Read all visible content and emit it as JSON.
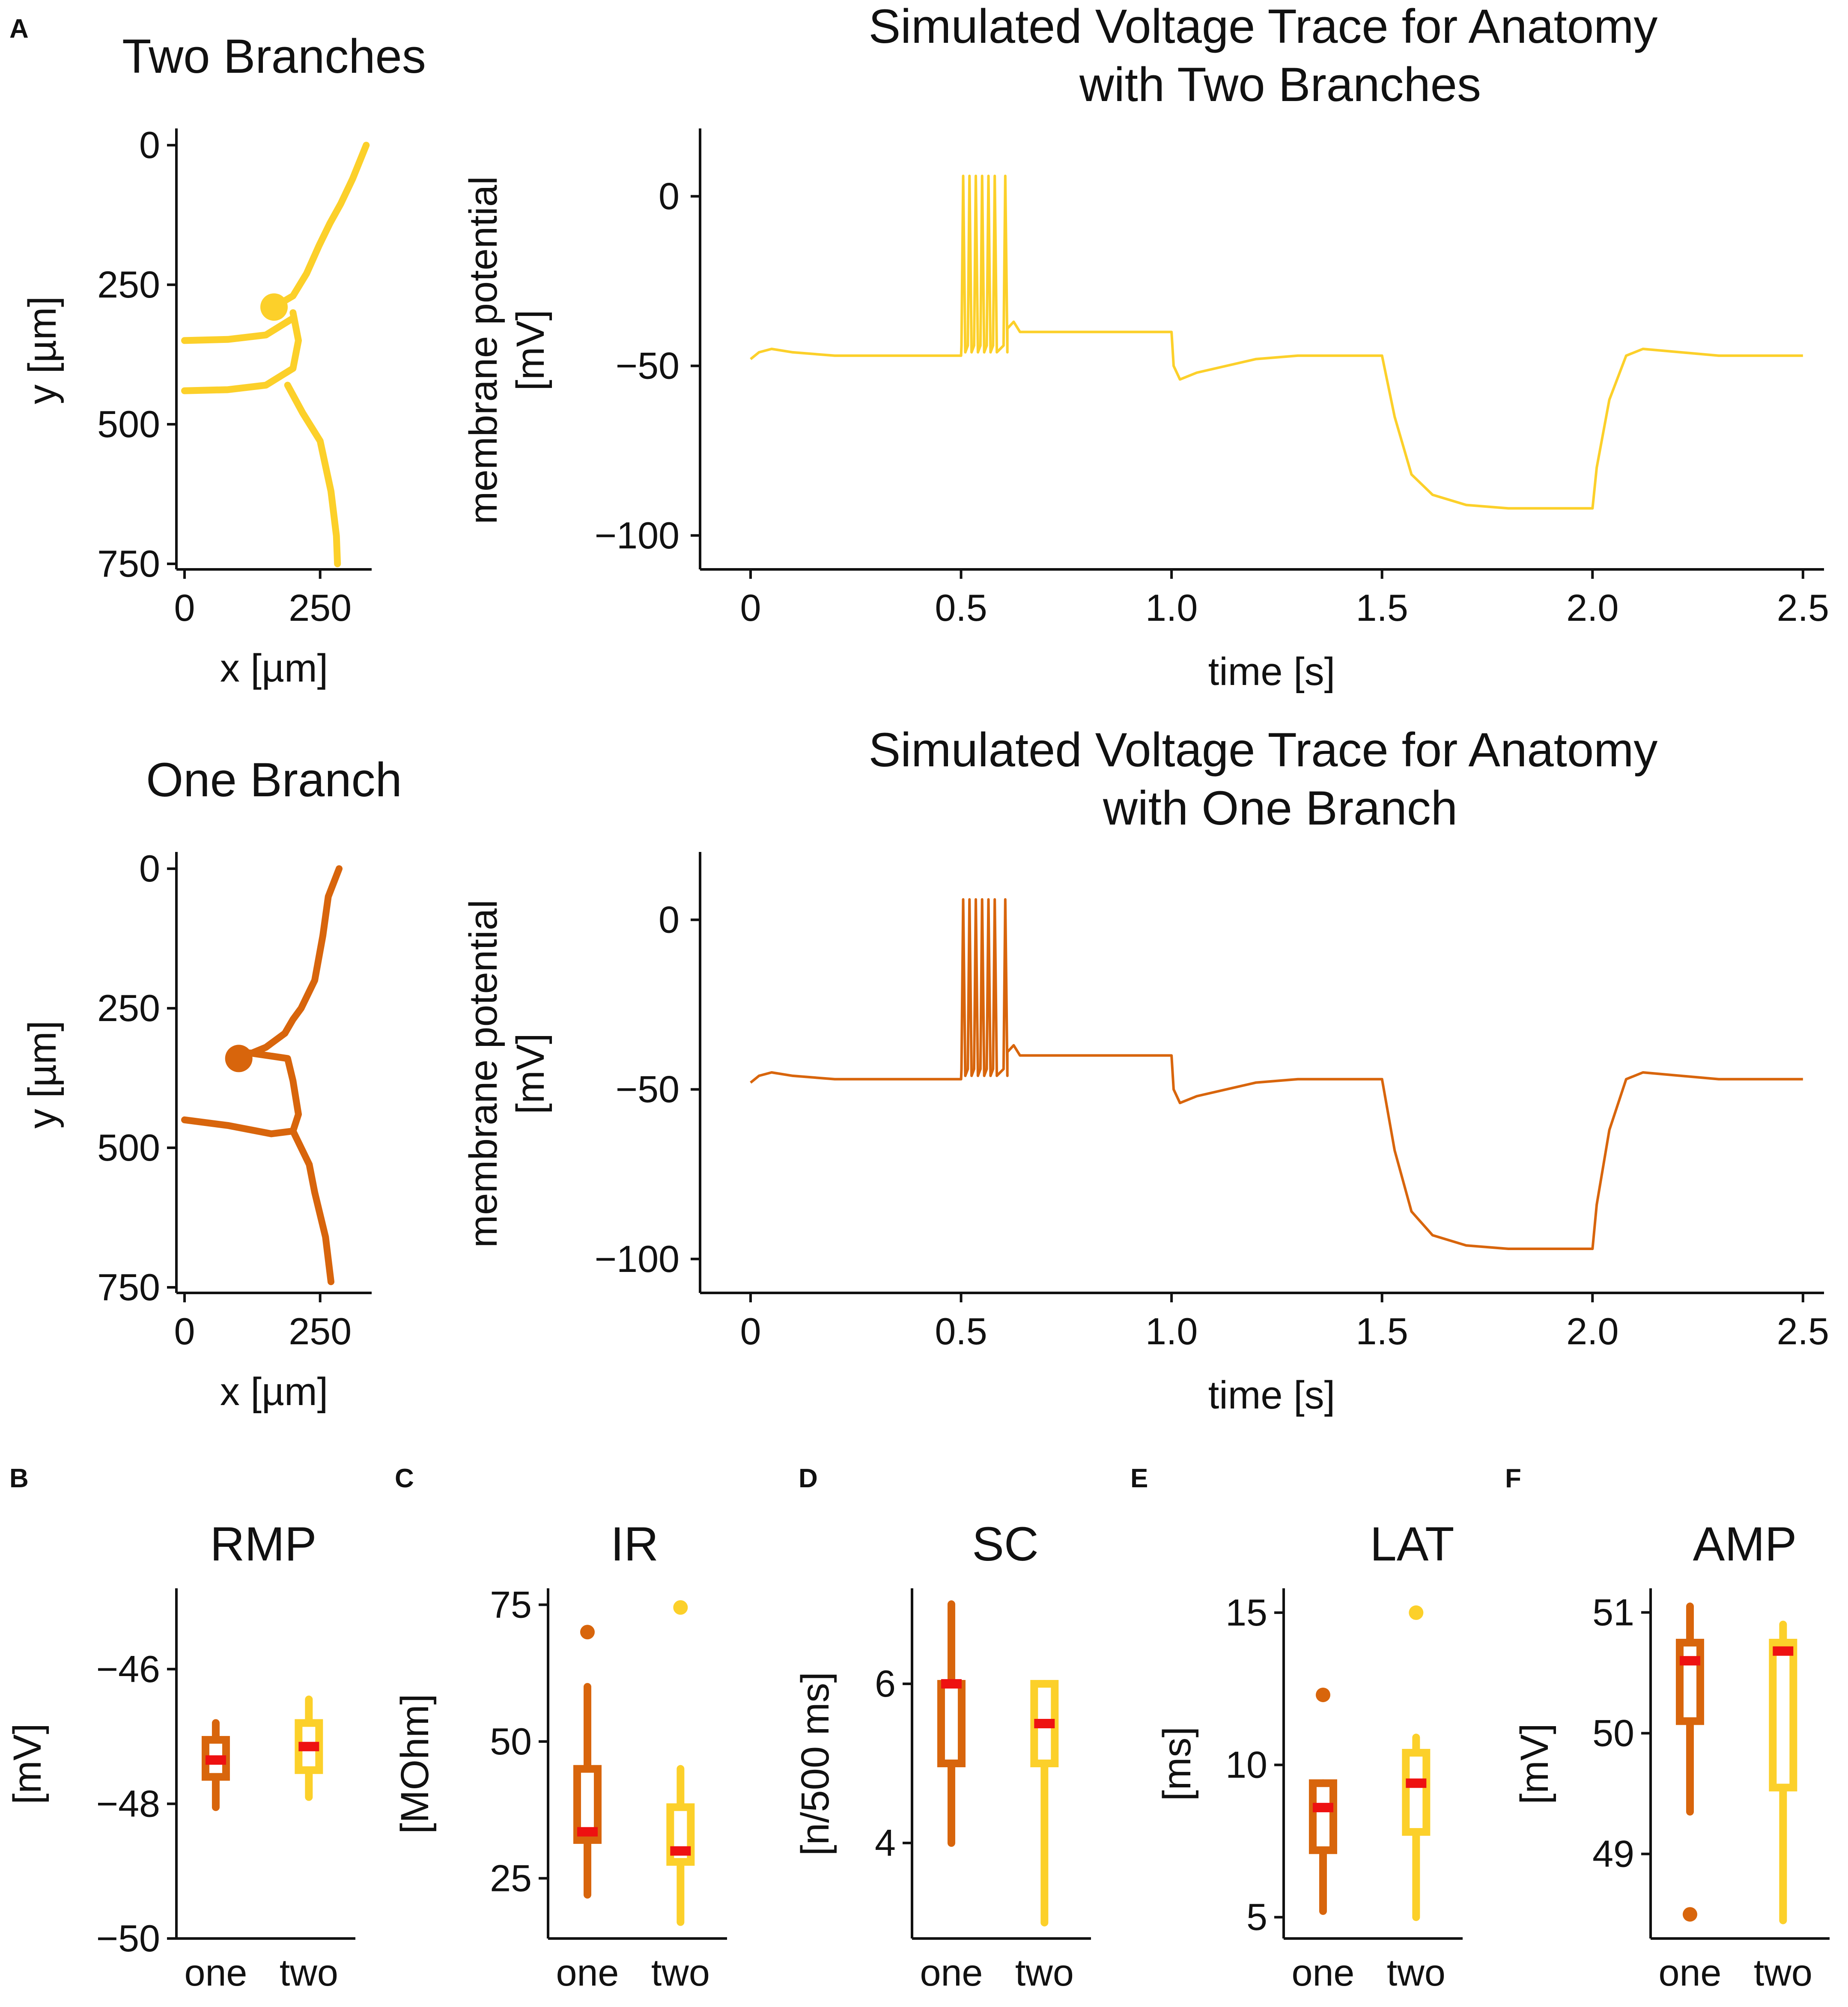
{
  "colors": {
    "one": "#d8650c",
    "two": "#fcd02a",
    "median": "#ee1111",
    "axis": "#111111"
  },
  "panel_letters": {
    "a": "A",
    "b": "B",
    "c": "C",
    "d": "D",
    "e": "E",
    "f": "F"
  },
  "chart_data": [
    {
      "id": "morph_two",
      "type": "scatter",
      "title": "Two Branches",
      "xlabel": "x [µm]",
      "ylabel": "y [µm]",
      "xlim": [
        -15,
        345
      ],
      "ylim": [
        760,
        -30
      ],
      "xticks": [
        0,
        250
      ],
      "yticks": [
        0,
        250,
        500,
        750
      ],
      "series": [
        {
          "name": "two",
          "color": "two",
          "soma": [
            165,
            290
          ],
          "branches": [
            [
              [
                165,
                290
              ],
              [
                200,
                270
              ],
              [
                225,
                230
              ],
              [
                248,
                180
              ],
              [
                268,
                140
              ],
              [
                288,
                105
              ],
              [
                310,
                60
              ],
              [
                335,
                0
              ]
            ],
            [
              [
                200,
                310
              ],
              [
                150,
                340
              ],
              [
                80,
                348
              ],
              [
                0,
                350
              ]
            ],
            [
              [
                200,
                300
              ],
              [
                210,
                350
              ],
              [
                200,
                400
              ],
              [
                150,
                430
              ],
              [
                80,
                438
              ],
              [
                0,
                440
              ]
            ],
            [
              [
                190,
                430
              ],
              [
                218,
                480
              ],
              [
                250,
                530
              ],
              [
                270,
                620
              ],
              [
                280,
                700
              ],
              [
                282,
                750
              ]
            ]
          ]
        }
      ]
    },
    {
      "id": "voltage_two",
      "type": "line",
      "title": [
        "Simulated Voltage Trace for Anatomy",
        "with Two Branches"
      ],
      "xlabel": "time [s]",
      "ylabel": [
        "membrane potential",
        "[mV]"
      ],
      "xlim": [
        -0.12,
        2.55
      ],
      "ylim": [
        -110,
        20
      ],
      "xticks": [
        0,
        0.5,
        1.0,
        1.5,
        2.0,
        2.5
      ],
      "yticks": [
        0,
        -50,
        -100
      ],
      "xtick_labels": [
        "0",
        "0.5",
        "1.0",
        "1.5",
        "2.0",
        "2.5"
      ],
      "ytick_labels": [
        "0",
        "−50",
        "−100"
      ],
      "series": [
        {
          "name": "two",
          "color": "two",
          "spikes": [
            0.505,
            0.52,
            0.535,
            0.55,
            0.565,
            0.58,
            0.605
          ],
          "points": [
            [
              0,
              -48
            ],
            [
              0.02,
              -46
            ],
            [
              0.05,
              -45
            ],
            [
              0.1,
              -46
            ],
            [
              0.2,
              -47
            ],
            [
              0.5,
              -47
            ],
            [
              0.61,
              -39
            ],
            [
              0.625,
              -37
            ],
            [
              0.64,
              -40
            ],
            [
              1.0,
              -40
            ],
            [
              1.005,
              -50
            ],
            [
              1.02,
              -54
            ],
            [
              1.06,
              -52
            ],
            [
              1.2,
              -48
            ],
            [
              1.3,
              -47
            ],
            [
              1.5,
              -47
            ],
            [
              1.53,
              -65
            ],
            [
              1.57,
              -82
            ],
            [
              1.62,
              -88
            ],
            [
              1.7,
              -91
            ],
            [
              1.8,
              -92
            ],
            [
              2.0,
              -92
            ],
            [
              2.01,
              -80
            ],
            [
              2.04,
              -60
            ],
            [
              2.08,
              -47
            ],
            [
              2.12,
              -45
            ],
            [
              2.3,
              -47
            ],
            [
              2.5,
              -47
            ]
          ]
        }
      ]
    },
    {
      "id": "morph_one",
      "type": "scatter",
      "title": "One Branch",
      "xlabel": "x [µm]",
      "ylabel": "y [µm]",
      "xlim": [
        -15,
        345
      ],
      "ylim": [
        760,
        -30
      ],
      "xticks": [
        0,
        250
      ],
      "yticks": [
        0,
        250,
        500,
        750
      ],
      "series": [
        {
          "name": "one",
          "color": "one",
          "soma": [
            100,
            340
          ],
          "branches": [
            [
              [
                100,
                340
              ],
              [
                150,
                320
              ],
              [
                185,
                295
              ],
              [
                200,
                270
              ],
              [
                215,
                250
              ],
              [
                240,
                200
              ],
              [
                255,
                120
              ],
              [
                265,
                50
              ],
              [
                285,
                0
              ]
            ],
            [
              [
                120,
                330
              ],
              [
                190,
                340
              ],
              [
                200,
                380
              ],
              [
                210,
                440
              ],
              [
                200,
                470
              ],
              [
                160,
                475
              ],
              [
                80,
                460
              ],
              [
                0,
                450
              ]
            ],
            [
              [
                200,
                470
              ],
              [
                230,
                530
              ],
              [
                240,
                580
              ],
              [
                260,
                660
              ],
              [
                270,
                740
              ]
            ]
          ]
        }
      ]
    },
    {
      "id": "voltage_one",
      "type": "line",
      "title": [
        "Simulated Voltage Trace for Anatomy",
        "with One Branch"
      ],
      "xlabel": "time [s]",
      "ylabel": [
        "membrane potential",
        "[mV]"
      ],
      "xlim": [
        -0.12,
        2.55
      ],
      "ylim": [
        -110,
        20
      ],
      "xticks": [
        0,
        0.5,
        1.0,
        1.5,
        2.0,
        2.5
      ],
      "yticks": [
        0,
        -50,
        -100
      ],
      "xtick_labels": [
        "0",
        "0.5",
        "1.0",
        "1.5",
        "2.0",
        "2.5"
      ],
      "ytick_labels": [
        "0",
        "−50",
        "−100"
      ],
      "series": [
        {
          "name": "one",
          "color": "one",
          "spikes": [
            0.505,
            0.52,
            0.535,
            0.55,
            0.565,
            0.58,
            0.605
          ],
          "points": [
            [
              0,
              -48
            ],
            [
              0.02,
              -46
            ],
            [
              0.05,
              -45
            ],
            [
              0.1,
              -46
            ],
            [
              0.2,
              -47
            ],
            [
              0.5,
              -47
            ],
            [
              0.61,
              -39
            ],
            [
              0.625,
              -37
            ],
            [
              0.64,
              -40
            ],
            [
              1.0,
              -40
            ],
            [
              1.005,
              -50
            ],
            [
              1.02,
              -54
            ],
            [
              1.06,
              -52
            ],
            [
              1.2,
              -48
            ],
            [
              1.3,
              -47
            ],
            [
              1.5,
              -47
            ],
            [
              1.53,
              -68
            ],
            [
              1.57,
              -86
            ],
            [
              1.62,
              -93
            ],
            [
              1.7,
              -96
            ],
            [
              1.8,
              -97
            ],
            [
              2.0,
              -97
            ],
            [
              2.01,
              -84
            ],
            [
              2.04,
              -62
            ],
            [
              2.08,
              -47
            ],
            [
              2.12,
              -45
            ],
            [
              2.3,
              -47
            ],
            [
              2.5,
              -47
            ]
          ]
        }
      ]
    },
    {
      "id": "rmp",
      "type": "box",
      "title": "RMP",
      "ylabel": "[mV]",
      "ylim": [
        -50,
        -44.8
      ],
      "yticks": [
        -46,
        -48,
        -50
      ],
      "ytick_labels": [
        "−46",
        "−48",
        "−50"
      ],
      "categories": [
        "one",
        "two"
      ],
      "boxes": [
        {
          "name": "one",
          "color": "one",
          "whisker_low": -48.05,
          "q1": -47.6,
          "median": -47.35,
          "q3": -47.05,
          "whisker_high": -46.8,
          "fliers": []
        },
        {
          "name": "two",
          "color": "two",
          "whisker_low": -47.9,
          "q1": -47.5,
          "median": -47.15,
          "q3": -46.8,
          "whisker_high": -46.45,
          "fliers": []
        }
      ]
    },
    {
      "id": "ir",
      "type": "box",
      "title": "IR",
      "ylabel": "[MOhm]",
      "ylim": [
        14,
        78
      ],
      "yticks": [
        25,
        50,
        75
      ],
      "ytick_labels": [
        "25",
        "50",
        "75"
      ],
      "categories": [
        "one",
        "two"
      ],
      "boxes": [
        {
          "name": "one",
          "color": "one",
          "whisker_low": 22,
          "q1": 32,
          "median": 33.5,
          "q3": 45,
          "whisker_high": 60,
          "fliers": [
            70
          ]
        },
        {
          "name": "two",
          "color": "two",
          "whisker_low": 17,
          "q1": 28,
          "median": 30,
          "q3": 38,
          "whisker_high": 45,
          "fliers": [
            74.5
          ]
        }
      ]
    },
    {
      "id": "sc",
      "type": "box",
      "title": "SC",
      "ylabel": "[n/500 ms]",
      "ylim": [
        2.8,
        7.2
      ],
      "yticks": [
        4,
        6
      ],
      "ytick_labels": [
        "4",
        "6"
      ],
      "categories": [
        "one",
        "two"
      ],
      "boxes": [
        {
          "name": "one",
          "color": "one",
          "whisker_low": 4,
          "q1": 5,
          "median": 6,
          "q3": 6,
          "whisker_high": 7,
          "fliers": []
        },
        {
          "name": "two",
          "color": "two",
          "whisker_low": 3,
          "q1": 5,
          "median": 5.5,
          "q3": 6,
          "whisker_high": 6,
          "fliers": []
        }
      ]
    },
    {
      "id": "lat",
      "type": "box",
      "title": "LAT",
      "ylabel": "[ms]",
      "ylim": [
        4.3,
        15.8
      ],
      "yticks": [
        5,
        10,
        15
      ],
      "ytick_labels": [
        "5",
        "10",
        "15"
      ],
      "categories": [
        "one",
        "two"
      ],
      "boxes": [
        {
          "name": "one",
          "color": "one",
          "whisker_low": 5.2,
          "q1": 7.2,
          "median": 8.6,
          "q3": 9.4,
          "whisker_high": 9.4,
          "fliers": [
            12.3
          ]
        },
        {
          "name": "two",
          "color": "two",
          "whisker_low": 5,
          "q1": 7.8,
          "median": 9.4,
          "q3": 10.4,
          "whisker_high": 10.9,
          "fliers": [
            15
          ]
        }
      ]
    },
    {
      "id": "amp",
      "type": "box",
      "title": "AMP",
      "ylabel": "[mV]",
      "ylim": [
        48.3,
        51.2
      ],
      "yticks": [
        49,
        50,
        51
      ],
      "ytick_labels": [
        "49",
        "50",
        "51"
      ],
      "categories": [
        "one",
        "two"
      ],
      "boxes": [
        {
          "name": "one",
          "color": "one",
          "whisker_low": 49.35,
          "q1": 50.1,
          "median": 50.6,
          "q3": 50.75,
          "whisker_high": 51.05,
          "fliers": [
            48.5
          ]
        },
        {
          "name": "two",
          "color": "two",
          "whisker_low": 48.45,
          "q1": 49.55,
          "median": 50.68,
          "q3": 50.75,
          "whisker_high": 50.9,
          "fliers": []
        }
      ]
    }
  ]
}
